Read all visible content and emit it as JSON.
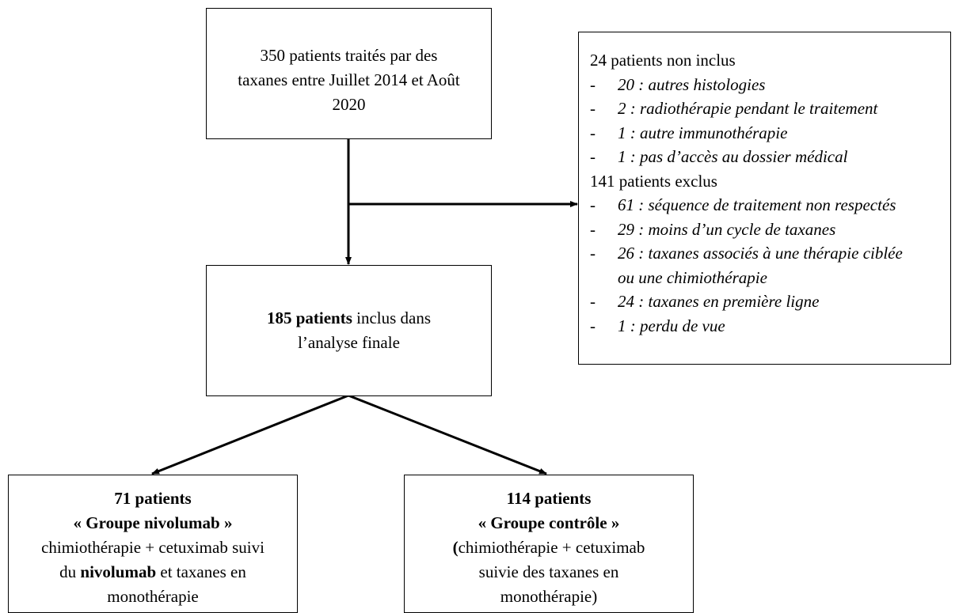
{
  "start": {
    "lines": [
      [
        {
          "text": "350 patients traités par des"
        }
      ],
      [
        {
          "text": "taxanes entre Juillet 2014 et Août"
        }
      ],
      [
        {
          "text": "2020"
        }
      ]
    ]
  },
  "exclusions": {
    "marker": "-",
    "groups": [
      {
        "title": "24 patients non inclus",
        "items": [
          [
            "20 : autres histologies"
          ],
          [
            "2 : radiothérapie pendant le traitement"
          ],
          [
            "1 : autre immunothérapie"
          ],
          [
            "1 : pas d’accès au dossier médical"
          ]
        ]
      },
      {
        "title": "141 patients exclus",
        "items": [
          [
            "61 : séquence de traitement non respectés"
          ],
          [
            "29 : moins d’un cycle de taxanes"
          ],
          [
            "26 : taxanes associés à une thérapie ciblée",
            "ou une chimiothérapie"
          ],
          [
            "24 : taxanes en première ligne"
          ],
          [
            "1 : perdu de vue"
          ]
        ]
      }
    ]
  },
  "final": {
    "lines": [
      [
        {
          "text": "185 patients",
          "bold": true
        },
        {
          "text": " inclus dans"
        }
      ],
      [
        {
          "text": "l’analyse finale"
        }
      ]
    ]
  },
  "groups": [
    {
      "lines": [
        [
          {
            "text": "71 patients",
            "bold": true
          }
        ],
        [
          {
            "text": "« Groupe nivolumab »",
            "bold": true
          }
        ],
        [
          {
            "text": "chimiothérapie + cetuximab suivi"
          }
        ],
        [
          {
            "text": "du "
          },
          {
            "text": "nivolumab",
            "bold": true
          },
          {
            "text": " et taxanes en"
          }
        ],
        [
          {
            "text": "monothérapie"
          }
        ]
      ]
    },
    {
      "lines": [
        [
          {
            "text": "114 patients",
            "bold": true
          }
        ],
        [
          {
            "text": "« Groupe contrôle »",
            "bold": true
          }
        ],
        [
          {
            "text": "(",
            "bold": true
          },
          {
            "text": "chimiothérapie + cetuximab"
          }
        ],
        [
          {
            "text": "suivie des taxanes en"
          }
        ],
        [
          {
            "text": "monothérapie)"
          }
        ]
      ]
    }
  ]
}
